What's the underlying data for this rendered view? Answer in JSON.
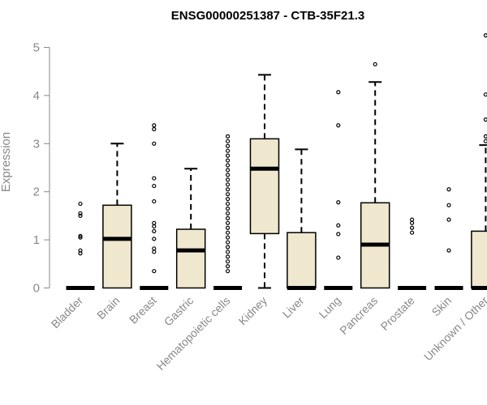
{
  "chart_data": {
    "type": "box",
    "title": "ENSG00000251387 - CTB-35F21.3",
    "xlabel": "",
    "ylabel": "Expression",
    "ylim": [
      0,
      5.3
    ],
    "yticks": [
      0,
      1,
      2,
      3,
      4,
      5
    ],
    "box_fill": "#efe8cf",
    "categories": [
      "Bladder",
      "Brain",
      "Breast",
      "Gastric",
      "Hematopoietic cells",
      "Kidney",
      "Liver",
      "Lung",
      "Pancreas",
      "Prostate",
      "Skin",
      "Unknown / Other"
    ],
    "boxes": [
      {
        "q1": 0,
        "median": 0,
        "q3": 0,
        "whisker_low": 0,
        "whisker_high": 0,
        "outliers": [
          0.72,
          0.78,
          1.05,
          1.08,
          1.5,
          1.55,
          1.75
        ]
      },
      {
        "q1": 0,
        "median": 1.02,
        "q3": 1.72,
        "whisker_low": 0,
        "whisker_high": 3.0,
        "outliers": []
      },
      {
        "q1": 0,
        "median": 0,
        "q3": 0,
        "whisker_low": 0,
        "whisker_high": 0,
        "outliers": [
          0.35,
          0.75,
          0.82,
          1.02,
          1.18,
          1.28,
          1.35,
          1.8,
          2.12,
          2.28,
          3.0,
          3.3,
          3.38
        ]
      },
      {
        "q1": 0,
        "median": 0.78,
        "q3": 1.22,
        "whisker_low": 0,
        "whisker_high": 2.48,
        "outliers": []
      },
      {
        "q1": 0,
        "median": 0,
        "q3": 0,
        "whisker_low": 0,
        "whisker_high": 0,
        "outliers": [
          0.35,
          0.45,
          0.55,
          0.65,
          0.75,
          0.85,
          0.95,
          1.05,
          1.15,
          1.25,
          1.35,
          1.45,
          1.55,
          1.65,
          1.75,
          1.85,
          1.95,
          2.05,
          2.15,
          2.25,
          2.35,
          2.45,
          2.55,
          2.65,
          2.75,
          2.85,
          2.95,
          3.05,
          3.15
        ]
      },
      {
        "q1": 1.13,
        "median": 2.48,
        "q3": 3.1,
        "whisker_low": 0,
        "whisker_high": 4.43,
        "outliers": []
      },
      {
        "q1": 0,
        "median": 0,
        "q3": 1.15,
        "whisker_low": 0,
        "whisker_high": 2.88,
        "outliers": []
      },
      {
        "q1": 0,
        "median": 0,
        "q3": 0,
        "whisker_low": 0,
        "whisker_high": 0,
        "outliers": [
          0.63,
          1.12,
          1.3,
          1.78,
          3.38,
          4.07
        ]
      },
      {
        "q1": 0,
        "median": 0.9,
        "q3": 1.77,
        "whisker_low": 0,
        "whisker_high": 4.28,
        "outliers": [
          4.65
        ]
      },
      {
        "q1": 0,
        "median": 0,
        "q3": 0,
        "whisker_low": 0,
        "whisker_high": 0,
        "outliers": [
          1.15,
          1.25,
          1.35,
          1.42
        ]
      },
      {
        "q1": 0,
        "median": 0,
        "q3": 0,
        "whisker_low": 0,
        "whisker_high": 0,
        "outliers": [
          0.78,
          1.42,
          1.72,
          2.05
        ]
      },
      {
        "q1": 0,
        "median": 0,
        "q3": 1.18,
        "whisker_low": 0,
        "whisker_high": 2.97,
        "outliers": [
          3.05,
          3.15,
          3.5,
          4.02,
          5.25
        ]
      }
    ]
  }
}
